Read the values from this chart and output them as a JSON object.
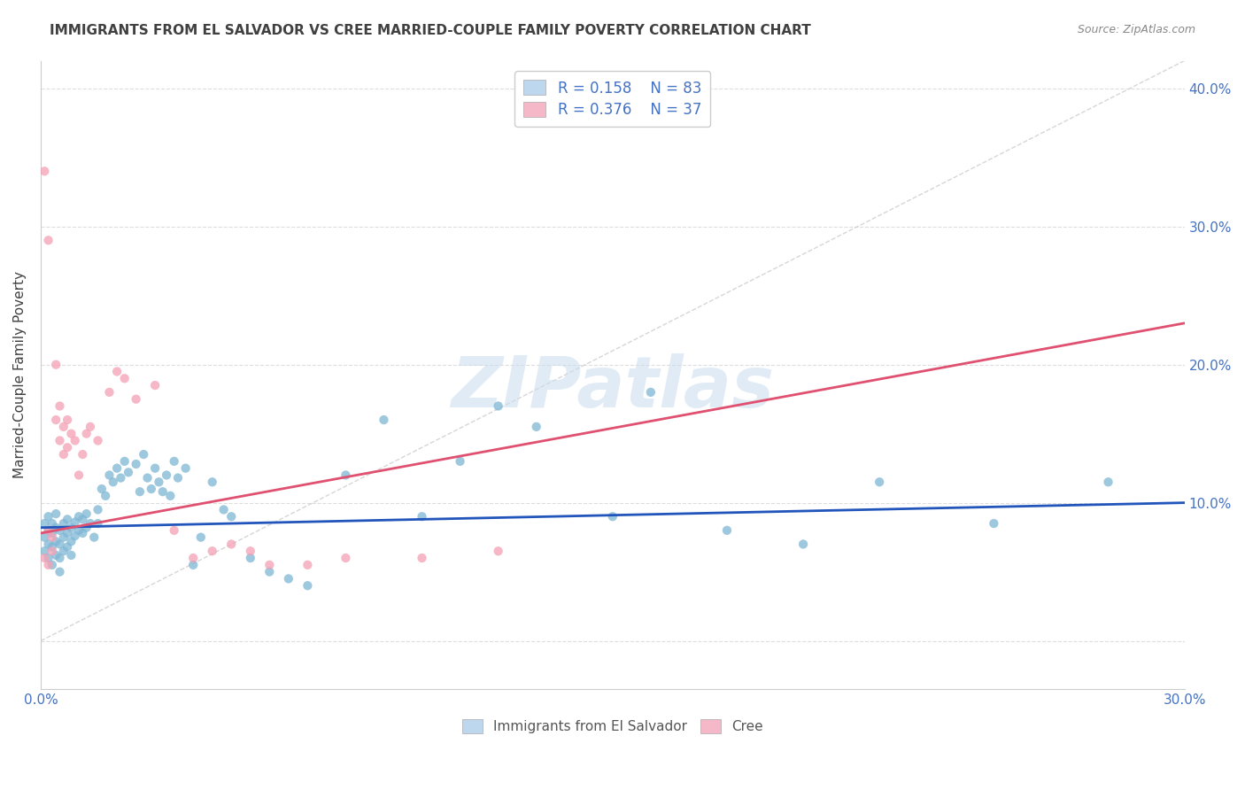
{
  "title": "IMMIGRANTS FROM EL SALVADOR VS CREE MARRIED-COUPLE FAMILY POVERTY CORRELATION CHART",
  "source": "Source: ZipAtlas.com",
  "ylabel": "Married-Couple Family Poverty",
  "legend_entries": [
    {
      "label": "Immigrants from El Salvador",
      "R": "0.158",
      "N": "83"
    },
    {
      "label": "Cree",
      "R": "0.376",
      "N": "37"
    }
  ],
  "watermark": "ZIPatlas",
  "blue_scatter_x": [
    0.001,
    0.001,
    0.001,
    0.002,
    0.002,
    0.002,
    0.002,
    0.003,
    0.003,
    0.003,
    0.003,
    0.004,
    0.004,
    0.004,
    0.004,
    0.005,
    0.005,
    0.005,
    0.005,
    0.006,
    0.006,
    0.006,
    0.007,
    0.007,
    0.007,
    0.008,
    0.008,
    0.008,
    0.009,
    0.009,
    0.01,
    0.01,
    0.011,
    0.011,
    0.012,
    0.012,
    0.013,
    0.014,
    0.015,
    0.015,
    0.016,
    0.017,
    0.018,
    0.019,
    0.02,
    0.021,
    0.022,
    0.023,
    0.025,
    0.026,
    0.027,
    0.028,
    0.029,
    0.03,
    0.031,
    0.032,
    0.033,
    0.034,
    0.035,
    0.036,
    0.038,
    0.04,
    0.042,
    0.045,
    0.048,
    0.05,
    0.055,
    0.06,
    0.065,
    0.07,
    0.08,
    0.09,
    0.1,
    0.11,
    0.12,
    0.13,
    0.15,
    0.16,
    0.18,
    0.2,
    0.22,
    0.25,
    0.28
  ],
  "blue_scatter_y": [
    0.075,
    0.085,
    0.065,
    0.09,
    0.08,
    0.07,
    0.06,
    0.085,
    0.078,
    0.068,
    0.055,
    0.082,
    0.072,
    0.062,
    0.092,
    0.08,
    0.07,
    0.06,
    0.05,
    0.085,
    0.075,
    0.065,
    0.088,
    0.078,
    0.068,
    0.082,
    0.072,
    0.062,
    0.086,
    0.076,
    0.09,
    0.08,
    0.088,
    0.078,
    0.092,
    0.082,
    0.085,
    0.075,
    0.095,
    0.085,
    0.11,
    0.105,
    0.12,
    0.115,
    0.125,
    0.118,
    0.13,
    0.122,
    0.128,
    0.108,
    0.135,
    0.118,
    0.11,
    0.125,
    0.115,
    0.108,
    0.12,
    0.105,
    0.13,
    0.118,
    0.125,
    0.055,
    0.075,
    0.115,
    0.095,
    0.09,
    0.06,
    0.05,
    0.045,
    0.04,
    0.12,
    0.16,
    0.09,
    0.13,
    0.17,
    0.155,
    0.09,
    0.18,
    0.08,
    0.07,
    0.115,
    0.085,
    0.115
  ],
  "pink_scatter_x": [
    0.001,
    0.001,
    0.002,
    0.002,
    0.002,
    0.003,
    0.003,
    0.004,
    0.004,
    0.005,
    0.005,
    0.006,
    0.006,
    0.007,
    0.007,
    0.008,
    0.009,
    0.01,
    0.011,
    0.012,
    0.013,
    0.015,
    0.018,
    0.02,
    0.022,
    0.025,
    0.03,
    0.035,
    0.04,
    0.045,
    0.05,
    0.055,
    0.06,
    0.07,
    0.08,
    0.1,
    0.12
  ],
  "pink_scatter_y": [
    0.34,
    0.06,
    0.29,
    0.08,
    0.055,
    0.075,
    0.065,
    0.2,
    0.16,
    0.17,
    0.145,
    0.155,
    0.135,
    0.16,
    0.14,
    0.15,
    0.145,
    0.12,
    0.135,
    0.15,
    0.155,
    0.145,
    0.18,
    0.195,
    0.19,
    0.175,
    0.185,
    0.08,
    0.06,
    0.065,
    0.07,
    0.065,
    0.055,
    0.055,
    0.06,
    0.06,
    0.065
  ],
  "xlim": [
    0.0,
    0.3
  ],
  "ylim": [
    -0.035,
    0.42
  ],
  "blue_line_x": [
    0.0,
    0.3
  ],
  "blue_line_y": [
    0.082,
    0.1
  ],
  "pink_line_x": [
    0.0,
    0.3
  ],
  "pink_line_y": [
    0.078,
    0.23
  ],
  "dashed_line_x": [
    0.0,
    0.3
  ],
  "dashed_line_y": [
    0.0,
    0.42
  ],
  "bg_color": "#ffffff",
  "scatter_blue": "#7EB6D4",
  "scatter_pink": "#F4A0B4",
  "line_blue": "#2255BB",
  "line_pink": "#E05070",
  "legend_blue_fill": "#BDD7EE",
  "legend_pink_fill": "#F4B8C8",
  "title_color": "#404040",
  "tick_color": "#4472C4",
  "grid_color": "#dddddd",
  "dashed_color": "#cccccc"
}
